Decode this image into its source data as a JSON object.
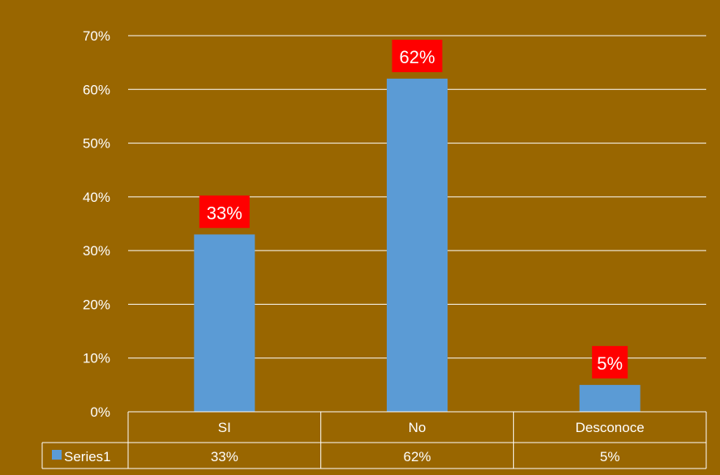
{
  "chart_data": {
    "type": "bar",
    "title": "",
    "xlabel": "",
    "ylabel": "",
    "categories": [
      "SI",
      "No",
      "Desconoce"
    ],
    "series": [
      {
        "name": "Series1",
        "values": [
          33,
          62,
          5
        ],
        "labels": [
          "33%",
          "62%",
          "5%"
        ]
      }
    ],
    "y_ticks": [
      "0%",
      "10%",
      "20%",
      "30%",
      "40%",
      "50%",
      "60%",
      "70%"
    ],
    "ylim": [
      0,
      70
    ],
    "grid": true,
    "legend": "data-table",
    "colors": {
      "background": "#996600",
      "bar": "#5b9bd5",
      "label_background": "#ff0000",
      "grid": "#ffffff",
      "text": "#ffffff"
    }
  }
}
